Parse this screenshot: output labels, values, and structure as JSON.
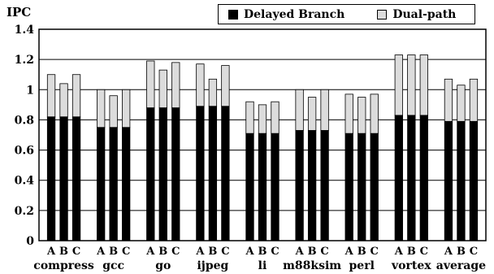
{
  "chart_data": {
    "type": "bar",
    "stacked": true,
    "ylabel": "IPC",
    "ylim": [
      0,
      1.4
    ],
    "yticks": [
      "0",
      "0.2",
      "0.4",
      "0.6",
      "0.8",
      "1",
      "1.2",
      "1.4"
    ],
    "grid": true,
    "legend_position": "top-right",
    "groups": [
      "compress",
      "gcc",
      "go",
      "ijpeg",
      "li",
      "m88ksim",
      "perl",
      "vortex",
      "average"
    ],
    "sub_categories": [
      "A",
      "B",
      "C"
    ],
    "colors": {
      "Delayed Branch": "#000000",
      "Dual-path": "#dcdcdc"
    },
    "series": [
      {
        "name": "Delayed Branch",
        "values": [
          [
            0.82,
            0.82,
            0.82
          ],
          [
            0.75,
            0.75,
            0.75
          ],
          [
            0.88,
            0.88,
            0.88
          ],
          [
            0.89,
            0.89,
            0.89
          ],
          [
            0.71,
            0.71,
            0.71
          ],
          [
            0.73,
            0.73,
            0.73
          ],
          [
            0.71,
            0.71,
            0.71
          ],
          [
            0.83,
            0.83,
            0.83
          ],
          [
            0.79,
            0.79,
            0.79
          ]
        ]
      },
      {
        "name": "Dual-path",
        "values": [
          [
            0.28,
            0.22,
            0.28
          ],
          [
            0.25,
            0.21,
            0.25
          ],
          [
            0.31,
            0.25,
            0.3
          ],
          [
            0.28,
            0.18,
            0.27
          ],
          [
            0.21,
            0.19,
            0.21
          ],
          [
            0.27,
            0.22,
            0.27
          ],
          [
            0.26,
            0.24,
            0.26
          ],
          [
            0.4,
            0.4,
            0.4
          ],
          [
            0.28,
            0.24,
            0.28
          ]
        ]
      }
    ]
  }
}
